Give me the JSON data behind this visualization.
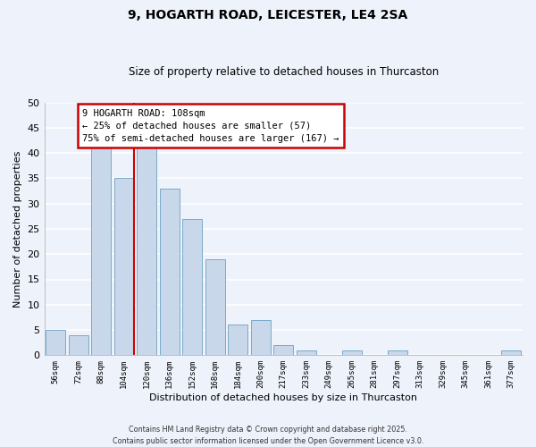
{
  "title": "9, HOGARTH ROAD, LEICESTER, LE4 2SA",
  "subtitle": "Size of property relative to detached houses in Thurcaston",
  "xlabel": "Distribution of detached houses by size in Thurcaston",
  "ylabel": "Number of detached properties",
  "bar_color": "#c8d8ea",
  "bar_edge_color": "#7aaac8",
  "background_color": "#eef2fb",
  "grid_color": "#ffffff",
  "categories": [
    "56sqm",
    "72sqm",
    "88sqm",
    "104sqm",
    "120sqm",
    "136sqm",
    "152sqm",
    "168sqm",
    "184sqm",
    "200sqm",
    "217sqm",
    "233sqm",
    "249sqm",
    "265sqm",
    "281sqm",
    "297sqm",
    "313sqm",
    "329sqm",
    "345sqm",
    "361sqm",
    "377sqm"
  ],
  "values": [
    5,
    4,
    41,
    35,
    42,
    33,
    27,
    19,
    6,
    7,
    2,
    1,
    0,
    1,
    0,
    1,
    0,
    0,
    0,
    0,
    1
  ],
  "ylim": [
    0,
    50
  ],
  "yticks": [
    0,
    5,
    10,
    15,
    20,
    25,
    30,
    35,
    40,
    45,
    50
  ],
  "vline_color": "#cc0000",
  "annotation_line1": "9 HOGARTH ROAD: 108sqm",
  "annotation_line2": "← 25% of detached houses are smaller (57)",
  "annotation_line3": "75% of semi-detached houses are larger (167) →",
  "annotation_box_color": "#ffffff",
  "annotation_box_edge": "#cc0000",
  "footer_line1": "Contains HM Land Registry data © Crown copyright and database right 2025.",
  "footer_line2": "Contains public sector information licensed under the Open Government Licence v3.0."
}
